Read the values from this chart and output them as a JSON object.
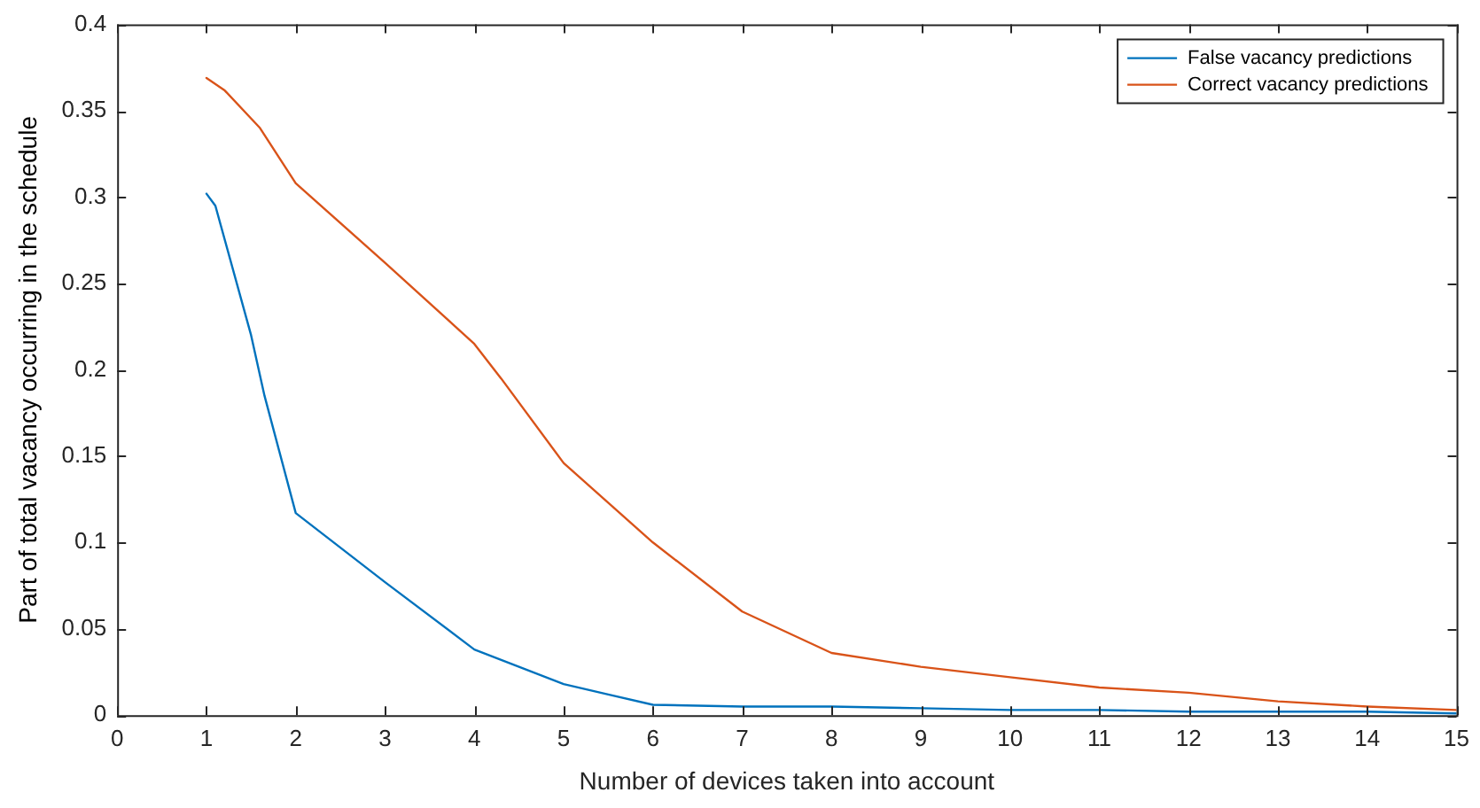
{
  "chart_data": {
    "type": "line",
    "xlabel": "Number of devices taken into account",
    "ylabel": "Part of total vacancy occurring in the schedule",
    "xlim": [
      0,
      15
    ],
    "xticks": [
      0,
      1,
      2,
      3,
      4,
      5,
      6,
      7,
      8,
      9,
      10,
      11,
      12,
      13,
      14,
      15
    ],
    "ylim": [
      0,
      0.4
    ],
    "yticks": [
      0,
      0.05,
      0.1,
      0.15,
      0.2,
      0.25,
      0.3,
      0.35,
      0.4
    ],
    "grid": false,
    "legend": "top right",
    "marker": "none",
    "line_style": "solid",
    "series": [
      {
        "name": "False vacancy predictions",
        "color": "#0072bd",
        "x": [
          1,
          1.1,
          1.5,
          1.65,
          2,
          3,
          4,
          4.5,
          5,
          5.5,
          6,
          7,
          8,
          9,
          10,
          11,
          12,
          13,
          14,
          15
        ],
        "values": [
          0.302,
          0.295,
          0.22,
          0.185,
          0.117,
          0.077,
          0.038,
          0.028,
          0.018,
          0.012,
          0.006,
          0.005,
          0.005,
          0.004,
          0.003,
          0.003,
          0.002,
          0.002,
          0.002,
          0.001
        ]
      },
      {
        "name": "Correct vacancy predictions",
        "color": "#d95319",
        "x": [
          1,
          1.2,
          1.6,
          2,
          3,
          4,
          4.3,
          5,
          6,
          7,
          8,
          9,
          10,
          11,
          12,
          13,
          14,
          15
        ],
        "values": [
          0.369,
          0.362,
          0.34,
          0.308,
          0.262,
          0.215,
          0.195,
          0.146,
          0.1,
          0.06,
          0.036,
          0.028,
          0.022,
          0.016,
          0.013,
          0.008,
          0.005,
          0.003
        ]
      }
    ]
  }
}
